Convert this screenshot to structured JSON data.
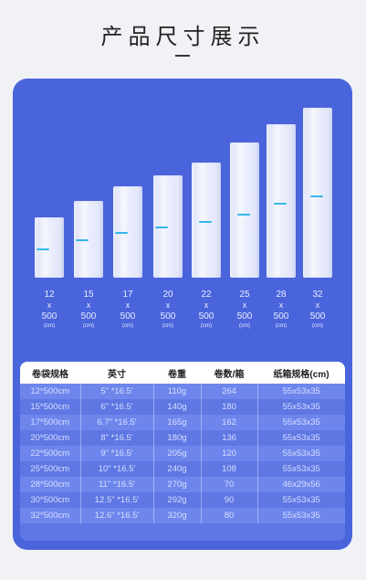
{
  "title": "产品尺寸展示",
  "rolls": [
    {
      "width": "12",
      "x": "x",
      "length": "500",
      "unit": "(cm)"
    },
    {
      "width": "15",
      "x": "x",
      "length": "500",
      "unit": "(cm)"
    },
    {
      "width": "17",
      "x": "x",
      "length": "500",
      "unit": "(cm)"
    },
    {
      "width": "20",
      "x": "x",
      "length": "500",
      "unit": "(cm)"
    },
    {
      "width": "22",
      "x": "x",
      "length": "500",
      "unit": "(cm)"
    },
    {
      "width": "25",
      "x": "x",
      "length": "500",
      "unit": "(cm)"
    },
    {
      "width": "28",
      "x": "x",
      "length": "500",
      "unit": "(cm)"
    },
    {
      "width": "32",
      "x": "x",
      "length": "500",
      "unit": "(cm)"
    }
  ],
  "colors": {
    "panel": "#4a64dc",
    "stripe": "#34b7e8",
    "background": "#f1f2f6"
  },
  "table": {
    "headers": [
      "卷袋规格",
      "英寸",
      "卷重",
      "卷数/箱",
      "纸箱规格(cm)"
    ],
    "rows": [
      [
        "12*500cm",
        "5\" *16.5'",
        "110g",
        "264",
        "55x53x35"
      ],
      [
        "15*500cm",
        "6\" *16.5'",
        "140g",
        "180",
        "55x53x35"
      ],
      [
        "17*500cm",
        "6.7\" *16.5'",
        "165g",
        "162",
        "55x53x35"
      ],
      [
        "20*500cm",
        "8\" *16.5'",
        "180g",
        "136",
        "55x53x35"
      ],
      [
        "22*500cm",
        "9\" *16.5'",
        "205g",
        "120",
        "55x53x35"
      ],
      [
        "25*500cm",
        "10\" *16.5'",
        "240g",
        "108",
        "55x53x35"
      ],
      [
        "28*500cm",
        "11\" *16.5'",
        "270g",
        "70",
        "46x29x56"
      ],
      [
        "30*500cm",
        "12.5\" *16.5'",
        "292g",
        "90",
        "55x53x35"
      ],
      [
        "32*500cm",
        "12.6\" *16.5'",
        "320g",
        "80",
        "55x53x35"
      ]
    ]
  }
}
